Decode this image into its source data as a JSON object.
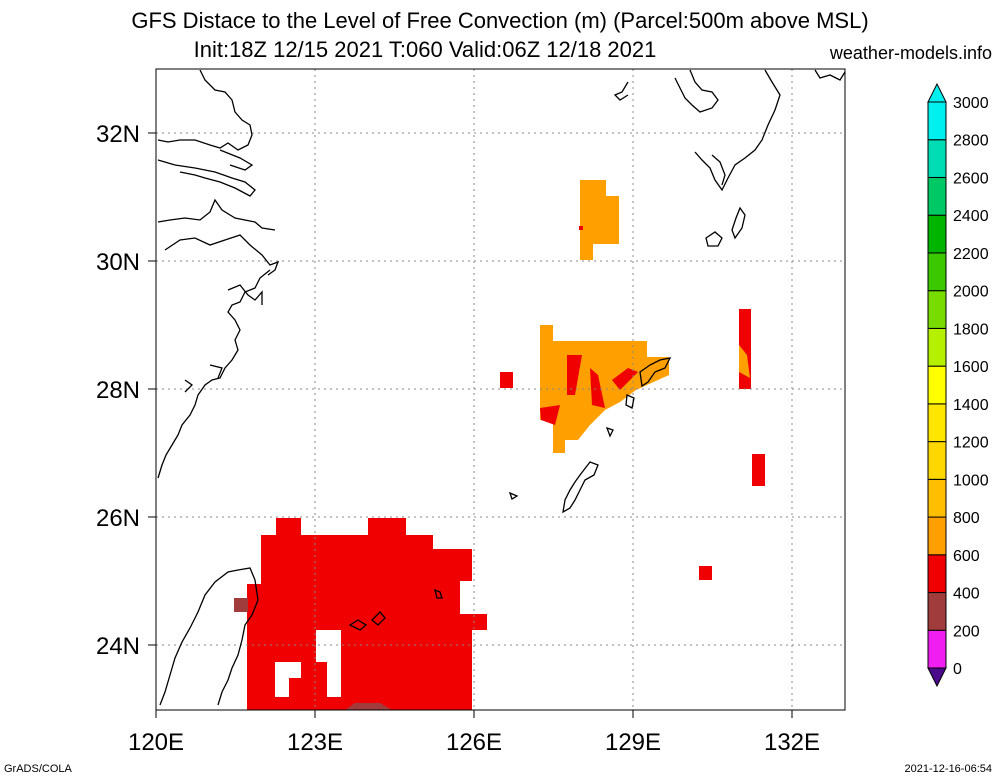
{
  "header": {
    "title_line1": "GFS Distace to the Level of Free Convection (m) (Parcel:500m above MSL)",
    "title_line2": "Init:18Z 12/15 2021 T:060 Valid:06Z 12/18 2021",
    "site": "weather-models.info"
  },
  "map": {
    "lon_range": [
      120,
      133
    ],
    "lat_range": [
      23,
      33
    ],
    "lon_ticks": [
      "120E",
      "123E",
      "126E",
      "129E",
      "132E"
    ],
    "lat_ticks": [
      "24N",
      "26N",
      "28N",
      "30N",
      "32N"
    ],
    "grid": "dotted"
  },
  "colorbar": {
    "levels": [
      "0",
      "200",
      "400",
      "600",
      "800",
      "1000",
      "1200",
      "1400",
      "1600",
      "1800",
      "2000",
      "2200",
      "2400",
      "2600",
      "2800",
      "3000"
    ],
    "colors": [
      "#4b0a8c",
      "#f01ef0",
      "#a03c3c",
      "#f00000",
      "#ffa000",
      "#ffbe00",
      "#ffd700",
      "#ffe600",
      "#ffff00",
      "#b4f000",
      "#78dc00",
      "#3cc800",
      "#00b400",
      "#00c864",
      "#00dcb4",
      "#00f0f0"
    ]
  },
  "footer": {
    "left": "GrADS/COLA",
    "right": "2021-12-16-06:54"
  }
}
